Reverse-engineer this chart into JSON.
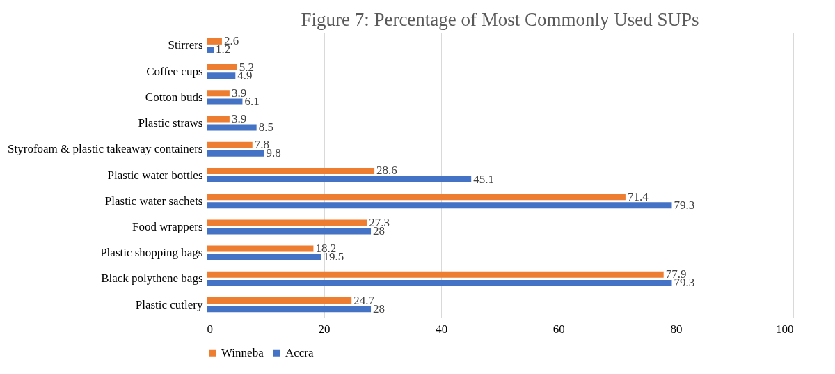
{
  "chart_data": {
    "type": "bar",
    "orientation": "horizontal",
    "title": "Figure 7: Percentage of Most Commonly Used SUPs",
    "categories": [
      "Stirrers",
      "Coffee cups",
      "Cotton buds",
      "Plastic straws",
      "Styrofoam & plastic takeaway containers",
      "Plastic water bottles",
      "Plastic water sachets",
      "Food wrappers",
      "Plastic shopping bags",
      "Black polythene bags",
      "Plastic cutlery"
    ],
    "series": [
      {
        "name": "Winneba",
        "color": "#ed7d31",
        "values": [
          2.6,
          5.2,
          3.9,
          3.9,
          7.8,
          28.6,
          71.4,
          27.3,
          18.2,
          77.9,
          24.7
        ]
      },
      {
        "name": "Accra",
        "color": "#4472c4",
        "values": [
          1.2,
          4.9,
          6.1,
          8.5,
          9.8,
          45.1,
          79.3,
          28,
          19.5,
          79.3,
          28
        ]
      }
    ],
    "xlim": [
      0,
      100
    ],
    "xticks": [
      0,
      20,
      40,
      60,
      80,
      100
    ],
    "grid": "x",
    "legend": "bottom",
    "data_labels": true
  }
}
